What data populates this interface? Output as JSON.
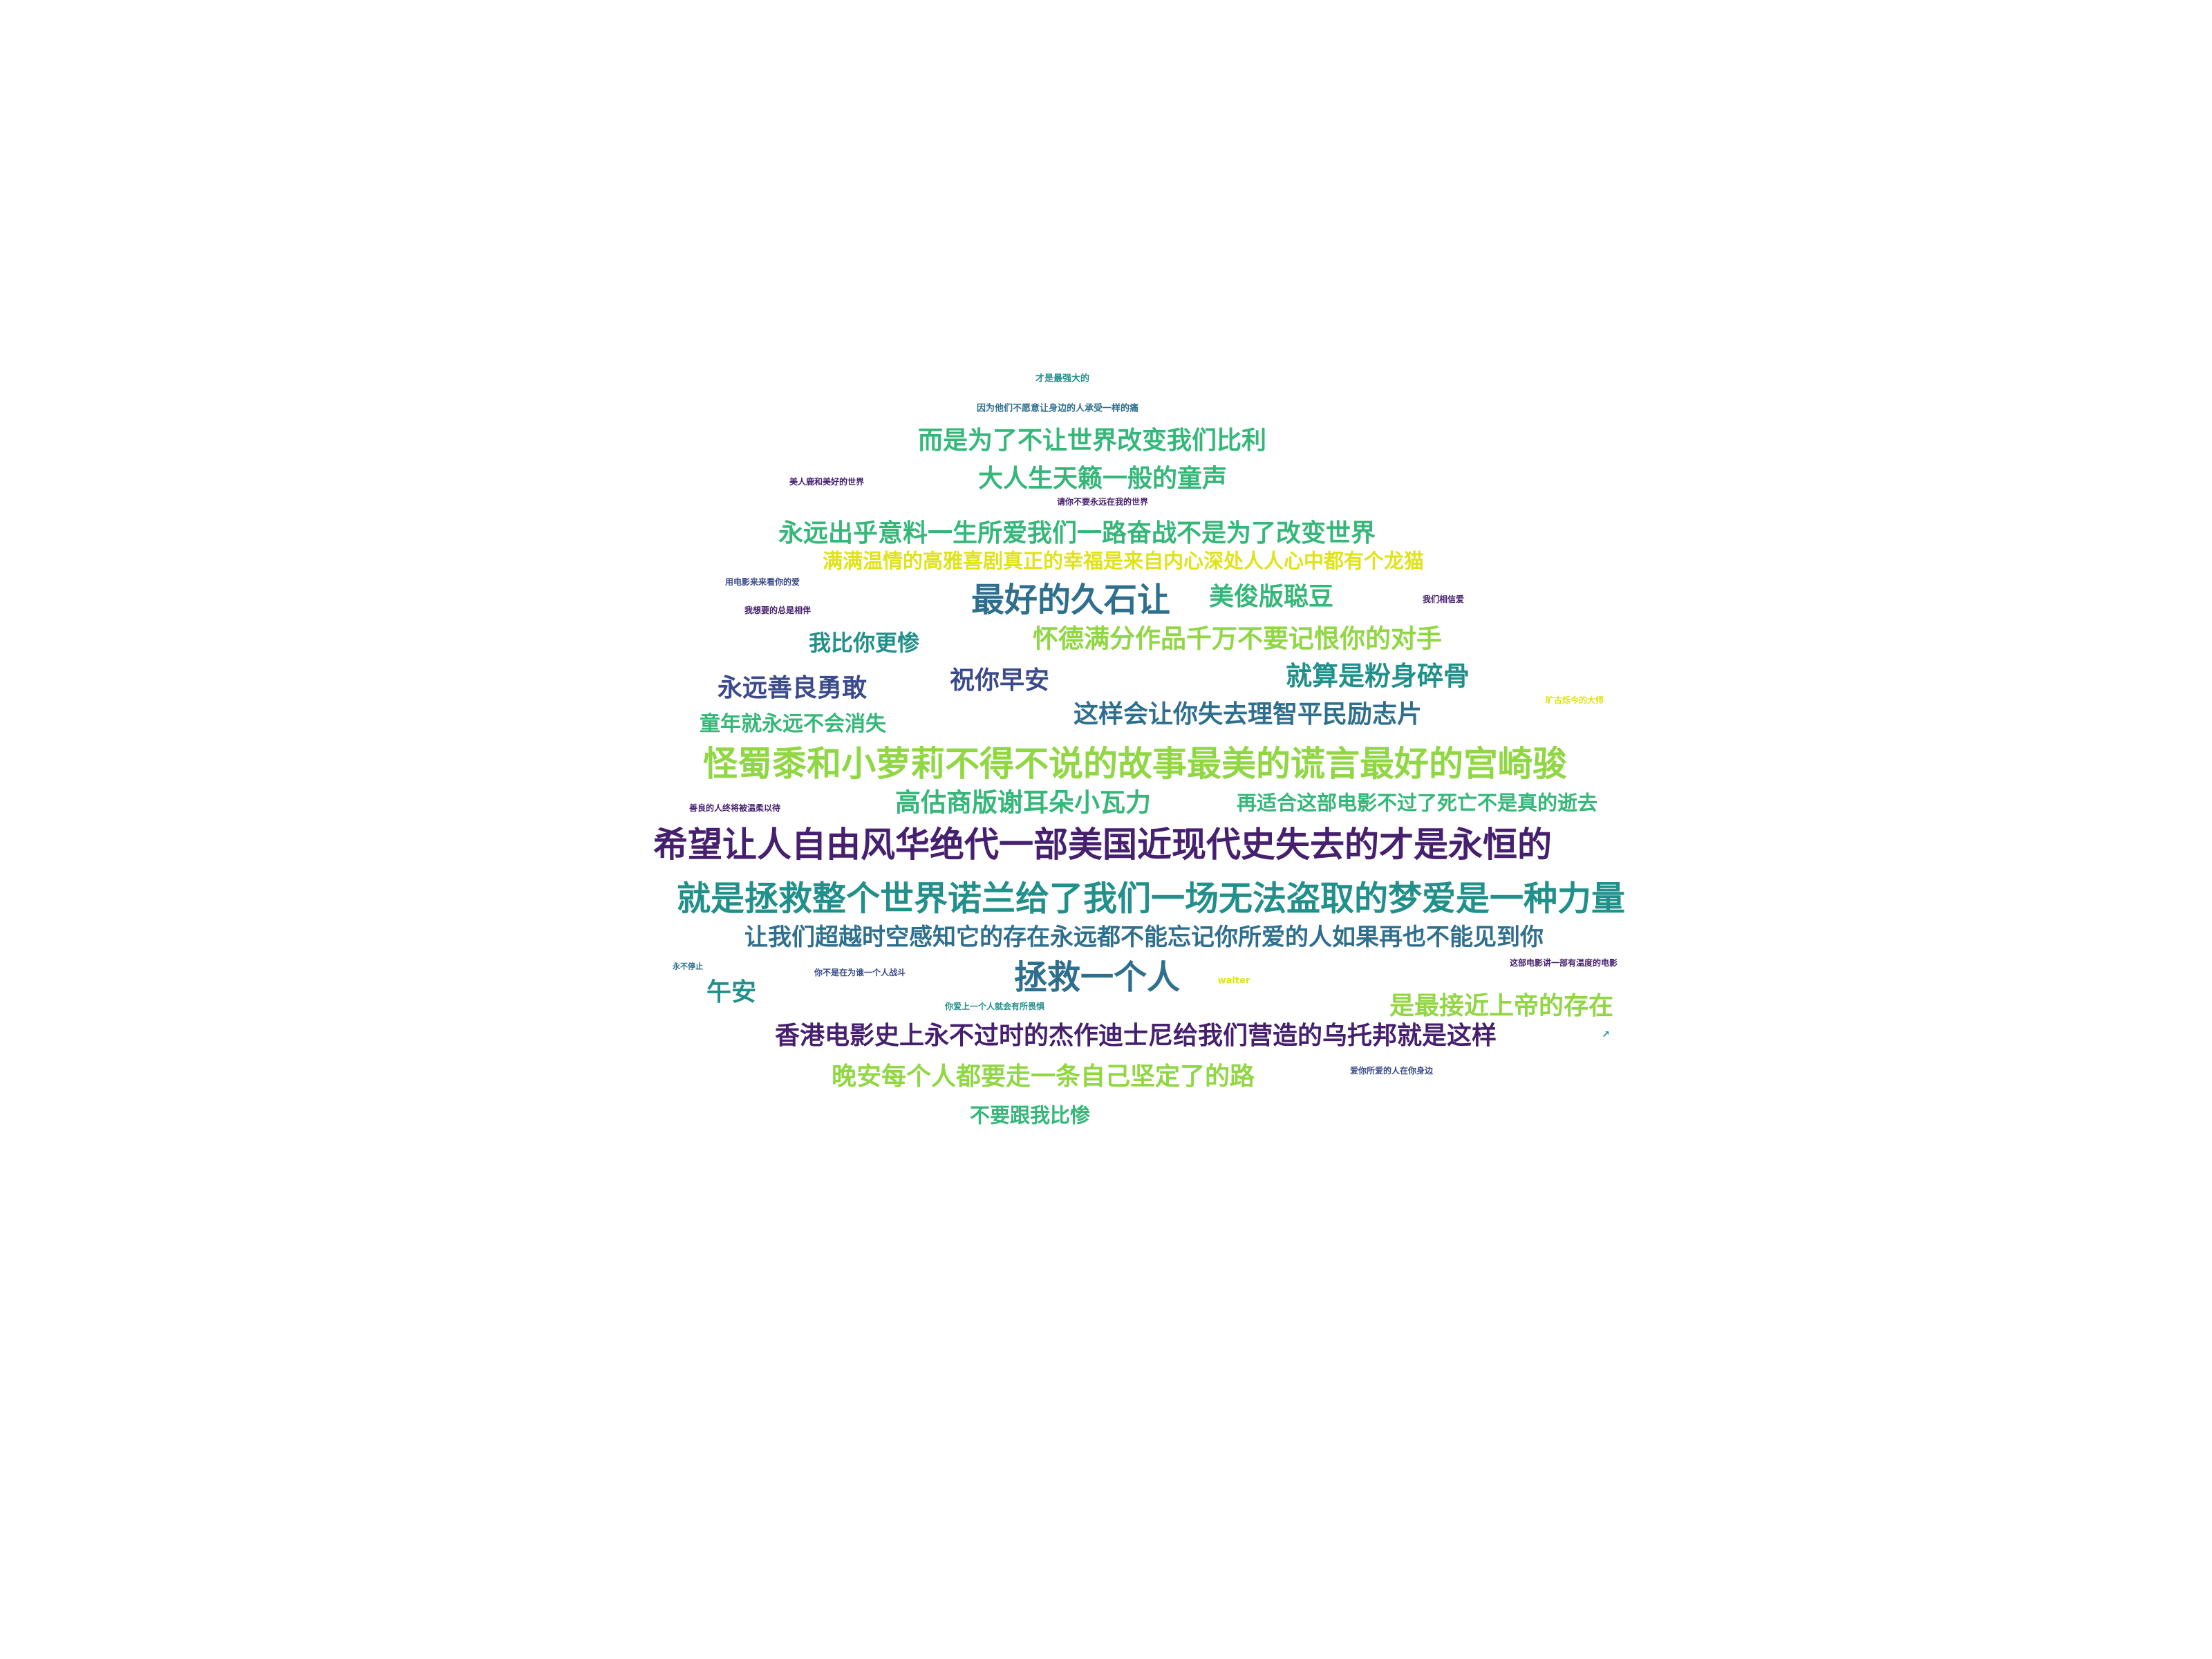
{
  "palette": {
    "purple": "#46206e",
    "indigo": "#3b4a8a",
    "blue": "#2f6f8e",
    "teal": "#22908a",
    "green": "#35b779",
    "lime": "#90d743",
    "yellow": "#dfe318"
  },
  "words": [
    {
      "id": "w01",
      "text": "希望让人自由风华绝代一部美国近现代史失去的才是永恒的",
      "color": "purple"
    },
    {
      "id": "w02",
      "text": "就是拯救整个世界诺兰给了我们一场无法盗取的梦爱是一种力量",
      "color": "teal"
    },
    {
      "id": "w03",
      "text": "怪蜀黍和小萝莉不得不说的故事最美的谎言最好的宫崎骏",
      "color": "lime"
    },
    {
      "id": "w04",
      "text": "让我们超越时空感知它的存在永远都不能忘记你所爱的人如果再也不能见到你",
      "color": "blue"
    },
    {
      "id": "w05",
      "text": "香港电影史上永不过时的杰作迪士尼给我们营造的乌托邦就是这样",
      "color": "purple"
    },
    {
      "id": "w06",
      "text": "拯救一个人",
      "color": "blue"
    },
    {
      "id": "w07",
      "text": "最好的久石让",
      "color": "blue"
    },
    {
      "id": "w08",
      "text": "永远出乎意料一生所爱我们一路奋战不是为了改变世界",
      "color": "green"
    },
    {
      "id": "w09",
      "text": "满满温情的高雅喜剧真正的幸福是来自内心深处人人心中都有个龙猫",
      "color": "yellow"
    },
    {
      "id": "w10",
      "text": "而是为了不让世界改变我们比利",
      "color": "green"
    },
    {
      "id": "w11",
      "text": "大人生天籁一般的童声",
      "color": "green"
    },
    {
      "id": "w12",
      "text": "美俊版聪豆",
      "color": "green"
    },
    {
      "id": "w13",
      "text": "怀德满分作品千万不要记恨你的对手",
      "color": "lime"
    },
    {
      "id": "w14",
      "text": "就算是粉身碎骨",
      "color": "teal"
    },
    {
      "id": "w15",
      "text": "这样会让你失去理智平民励志片",
      "color": "blue"
    },
    {
      "id": "w16",
      "text": "永远善良勇敢",
      "color": "indigo"
    },
    {
      "id": "w17",
      "text": "祝你早安",
      "color": "indigo"
    },
    {
      "id": "w18",
      "text": "我比你更惨",
      "color": "teal"
    },
    {
      "id": "w19",
      "text": "童年就永远不会消失",
      "color": "green"
    },
    {
      "id": "w20",
      "text": "高估商版谢耳朵小瓦力",
      "color": "green"
    },
    {
      "id": "w21",
      "text": "再适合这部电影不过了死亡不是真的逝去",
      "color": "green"
    },
    {
      "id": "w22",
      "text": "是最接近上帝的存在",
      "color": "lime"
    },
    {
      "id": "w23",
      "text": "晚安每个人都要走一条自己坚定了的路",
      "color": "lime"
    },
    {
      "id": "w24",
      "text": "不要跟我比惨",
      "color": "green"
    },
    {
      "id": "w25",
      "text": "午安",
      "color": "teal"
    },
    {
      "id": "w26",
      "text": "才是最强大的",
      "color": "teal"
    },
    {
      "id": "w27",
      "text": "因为他们不愿意让身边的人承受一样的痛",
      "color": "blue"
    },
    {
      "id": "w28",
      "text": "请你不要永远在我的世界",
      "color": "purple"
    },
    {
      "id": "w29",
      "text": "美人鹿和美好的世界",
      "color": "purple"
    },
    {
      "id": "w30",
      "text": "用电影来来看你的爱",
      "color": "indigo"
    },
    {
      "id": "w31",
      "text": "我想要的总是相伴",
      "color": "purple"
    },
    {
      "id": "w32",
      "text": "我们相信爱",
      "color": "purple"
    },
    {
      "id": "w33",
      "text": "旷古烁今的大师",
      "color": "yellow"
    },
    {
      "id": "w34",
      "text": "善良的人终将被温柔以待",
      "color": "purple"
    },
    {
      "id": "w35",
      "text": "永不停止",
      "color": "blue"
    },
    {
      "id": "w36",
      "text": "你不是在为谁一个人战斗",
      "color": "indigo"
    },
    {
      "id": "w37",
      "text": "walter",
      "color": "yellow"
    },
    {
      "id": "w38",
      "text": "你爱上一个人就会有所畏惧",
      "color": "teal"
    },
    {
      "id": "w39",
      "text": "这部电影讲一部有温度的电影",
      "color": "purple"
    },
    {
      "id": "w40",
      "text": "爱你所爱的人在你身边",
      "color": "indigo"
    },
    {
      "id": "w41",
      "text": "↗",
      "color": "teal"
    }
  ]
}
